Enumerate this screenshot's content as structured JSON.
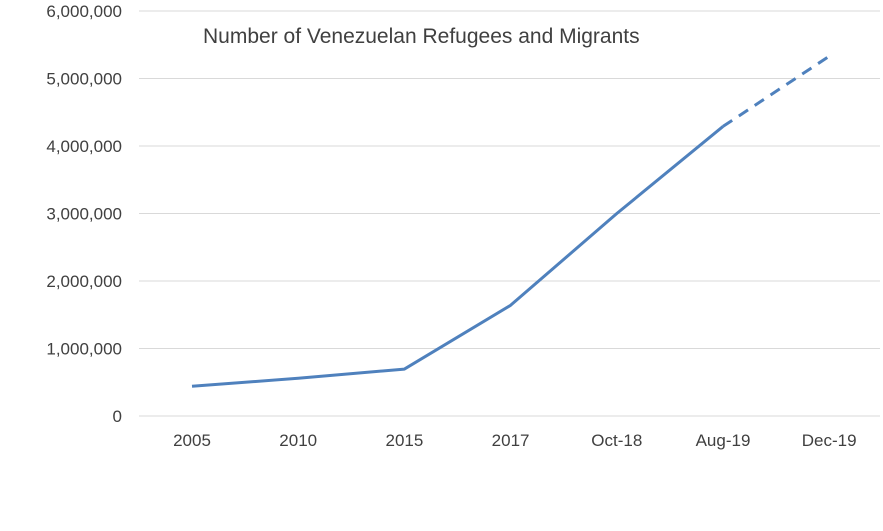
{
  "chart_data": {
    "type": "line",
    "title": "Number of Venezuelan Refugees and Migrants",
    "xlabel": "",
    "ylabel": "",
    "categories": [
      "2005",
      "2010",
      "2015",
      "2017",
      "Oct-18",
      "Aug-19",
      "Dec-19"
    ],
    "series": [
      {
        "values": [
          440000,
          560000,
          695000,
          1640000,
          3000000,
          4290000,
          5330000
        ],
        "projected_from_index": 5,
        "color": "#4f81bd"
      }
    ],
    "ylim": [
      0,
      6000000
    ],
    "yticks": [
      "0",
      "1,000,000",
      "2,000,000",
      "3,000,000",
      "4,000,000",
      "5,000,000",
      "6,000,000"
    ],
    "grid": true,
    "legend": "none",
    "colors": {
      "line": "#4f81bd",
      "grid": "#d9d9d9",
      "text": "#404040"
    }
  }
}
